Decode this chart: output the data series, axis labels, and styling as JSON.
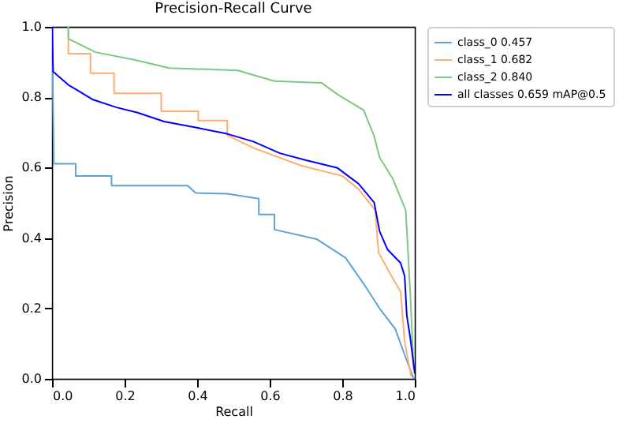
{
  "chart_data": {
    "type": "line",
    "title": "Precision-Recall Curve",
    "xlabel": "Recall",
    "ylabel": "Precision",
    "xlim": [
      0,
      1
    ],
    "ylim": [
      0,
      1
    ],
    "xticks": [
      {
        "value": 0,
        "label": "0.0"
      },
      {
        "value": 0.2,
        "label": "0.2"
      },
      {
        "value": 0.4,
        "label": "0.4"
      },
      {
        "value": 0.6,
        "label": "0.6"
      },
      {
        "value": 0.8,
        "label": "0.8"
      },
      {
        "value": 1,
        "label": "1.0"
      }
    ],
    "yticks": [
      {
        "value": 0,
        "label": "0.0"
      },
      {
        "value": 0.2,
        "label": "0.2"
      },
      {
        "value": 0.4,
        "label": "0.4"
      },
      {
        "value": 0.6,
        "label": "0.6"
      },
      {
        "value": 0.8,
        "label": "0.8"
      },
      {
        "value": 1,
        "label": "1.0"
      }
    ],
    "grid": false,
    "legend": "top right",
    "series": [
      {
        "name": "class_0 0.457",
        "color": "#5fa2d6",
        "x": [
          0,
          0.005,
          0.065,
          0.065,
          0.164,
          0.164,
          0.374,
          0.396,
          0.483,
          0.57,
          0.57,
          0.613,
          0.613,
          0.729,
          0.809,
          0.859,
          0.903,
          0.946,
          0.975,
          0.997
        ],
        "values": [
          1,
          0.611,
          0.611,
          0.576,
          0.576,
          0.549,
          0.549,
          0.528,
          0.526,
          0.512,
          0.467,
          0.467,
          0.424,
          0.397,
          0.344,
          0.27,
          0.2,
          0.142,
          0.06,
          0
        ]
      },
      {
        "name": "class_1 0.682",
        "color": "#ffae72",
        "x": [
          0.045,
          0.045,
          0.106,
          0.106,
          0.171,
          0.171,
          0.301,
          0.301,
          0.403,
          0.403,
          0.483,
          0.483,
          0.555,
          0.686,
          0.801,
          0.845,
          0.891,
          0.9,
          0.932,
          0.961,
          0.972,
          0.99
        ],
        "values": [
          1,
          0.924,
          0.924,
          0.868,
          0.868,
          0.811,
          0.811,
          0.76,
          0.76,
          0.734,
          0.734,
          0.692,
          0.656,
          0.606,
          0.576,
          0.539,
          0.479,
          0.359,
          0.299,
          0.247,
          0.105,
          0.007
        ]
      },
      {
        "name": "class_2 0.840",
        "color": "#7dc97d",
        "x": [
          0.045,
          0.045,
          0.12,
          0.229,
          0.323,
          0.512,
          0.613,
          0.743,
          0.787,
          0.859,
          0.888,
          0.903,
          0.939,
          0.975,
          0.987,
          0.997
        ],
        "values": [
          1,
          0.966,
          0.928,
          0.906,
          0.883,
          0.876,
          0.846,
          0.841,
          0.808,
          0.763,
          0.689,
          0.629,
          0.569,
          0.479,
          0.254,
          0.03
        ]
      },
      {
        "name": "all classes 0.659 mAP@0.5",
        "color": "#0000ff",
        "x": [
          0,
          0.003,
          0.045,
          0.07,
          0.113,
          0.178,
          0.236,
          0.309,
          0.396,
          0.483,
          0.555,
          0.628,
          0.7,
          0.787,
          0.845,
          0.888,
          0.903,
          0.925,
          0.961,
          0.972,
          0.978,
          0.987,
          1
        ],
        "values": [
          1,
          0.873,
          0.835,
          0.82,
          0.793,
          0.771,
          0.756,
          0.731,
          0.714,
          0.696,
          0.674,
          0.641,
          0.621,
          0.599,
          0.554,
          0.501,
          0.419,
          0.367,
          0.329,
          0.292,
          0.18,
          0.12,
          0.015
        ]
      }
    ]
  }
}
